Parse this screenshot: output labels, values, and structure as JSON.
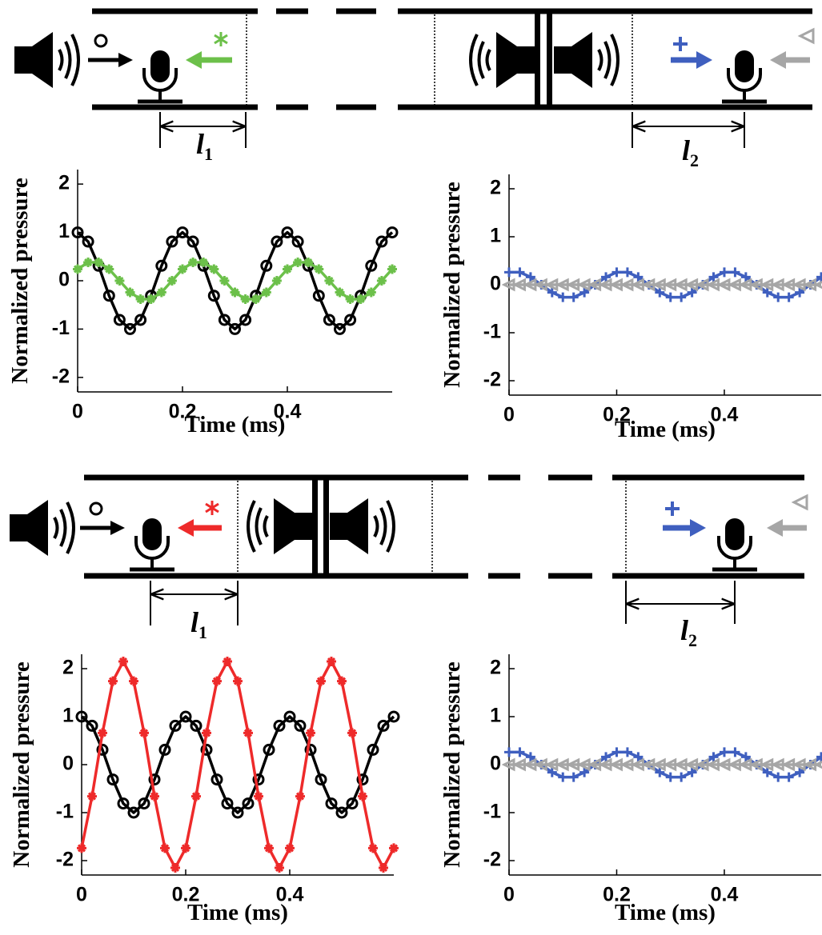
{
  "diagrams": [
    {
      "l1": {
        "symbol": "l",
        "subscript": "1"
      },
      "l2": {
        "symbol": "l",
        "subscript": "2"
      }
    },
    {
      "l1": {
        "symbol": "l",
        "subscript": "1"
      },
      "l2": {
        "symbol": "l",
        "subscript": "2"
      }
    }
  ],
  "chart_data": [
    {
      "type": "line",
      "xlabel": "Time (ms)",
      "ylabel": "Normalized pressure",
      "x": [
        0,
        0.02,
        0.04,
        0.06,
        0.08,
        0.1,
        0.12,
        0.14,
        0.16,
        0.18,
        0.2,
        0.22,
        0.24,
        0.26,
        0.28,
        0.3,
        0.32,
        0.34,
        0.36,
        0.38,
        0.4,
        0.42,
        0.44,
        0.46,
        0.48,
        0.5,
        0.52,
        0.54,
        0.56,
        0.58,
        0.6
      ],
      "xlim": [
        0,
        0.6
      ],
      "xticks": [
        0,
        0.2,
        0.4
      ],
      "ylim": [
        -2.3,
        2.3
      ],
      "yticks": [
        -2,
        -1,
        0,
        1,
        2
      ],
      "series": [
        {
          "color": "#000000",
          "marker": "o",
          "values": [
            1,
            0.81,
            0.31,
            -0.31,
            -0.81,
            -1,
            -0.81,
            -0.31,
            0.31,
            0.81,
            1,
            0.81,
            0.31,
            -0.31,
            -0.81,
            -1,
            -0.81,
            -0.31,
            0.31,
            0.81,
            1,
            0.81,
            0.31,
            -0.31,
            -0.81,
            -1,
            -0.81,
            -0.31,
            0.31,
            0.81,
            1
          ]
        },
        {
          "color": "#6cc04a",
          "marker": "*",
          "values": [
            0.24,
            0.38,
            0.38,
            0.24,
            0,
            -0.24,
            -0.38,
            -0.38,
            -0.24,
            0,
            0.24,
            0.38,
            0.38,
            0.24,
            0,
            -0.24,
            -0.38,
            -0.38,
            -0.24,
            0,
            0.24,
            0.38,
            0.38,
            0.24,
            0,
            -0.24,
            -0.38,
            -0.38,
            -0.24,
            0,
            0.24
          ]
        }
      ]
    },
    {
      "type": "line",
      "xlabel": "Time (ms)",
      "ylabel": "Normalized pressure",
      "x": [
        0,
        0.02,
        0.04,
        0.06,
        0.08,
        0.1,
        0.12,
        0.14,
        0.16,
        0.18,
        0.2,
        0.22,
        0.24,
        0.26,
        0.28,
        0.3,
        0.32,
        0.34,
        0.36,
        0.38,
        0.4,
        0.42,
        0.44,
        0.46,
        0.48,
        0.5,
        0.52,
        0.54,
        0.56,
        0.58
      ],
      "xlim": [
        0,
        0.58
      ],
      "xticks": [
        0,
        0.2,
        0.4
      ],
      "ylim": [
        -2.3,
        2.3
      ],
      "yticks": [
        -2,
        -1,
        0,
        1,
        2
      ],
      "series": [
        {
          "color": "#3f5fbf",
          "marker": "+",
          "values": [
            0.26,
            0.26,
            0.16,
            0,
            -0.16,
            -0.26,
            -0.26,
            -0.16,
            0,
            0.16,
            0.26,
            0.26,
            0.16,
            0,
            -0.16,
            -0.26,
            -0.26,
            -0.16,
            0,
            0.16,
            0.26,
            0.26,
            0.16,
            0,
            -0.16,
            -0.26,
            -0.26,
            -0.16,
            0,
            0.16
          ]
        },
        {
          "color": "#a6a6a6",
          "marker": "<",
          "values": [
            0,
            0,
            0,
            0,
            0,
            0,
            0,
            0,
            0,
            0,
            0,
            0,
            0,
            0,
            0,
            0,
            0,
            0,
            0,
            0,
            0,
            0,
            0,
            0,
            0,
            0,
            0,
            0,
            0,
            0
          ]
        }
      ]
    },
    {
      "type": "line",
      "xlabel": "Time (ms)",
      "ylabel": "Normalized pressure",
      "x": [
        0,
        0.02,
        0.04,
        0.06,
        0.08,
        0.1,
        0.12,
        0.14,
        0.16,
        0.18,
        0.2,
        0.22,
        0.24,
        0.26,
        0.28,
        0.3,
        0.32,
        0.34,
        0.36,
        0.38,
        0.4,
        0.42,
        0.44,
        0.46,
        0.48,
        0.5,
        0.52,
        0.54,
        0.56,
        0.58,
        0.6
      ],
      "xlim": [
        0,
        0.6
      ],
      "xticks": [
        0,
        0.2,
        0.4
      ],
      "ylim": [
        -2.3,
        2.3
      ],
      "yticks": [
        -2,
        -1,
        0,
        1,
        2
      ],
      "series": [
        {
          "color": "#000000",
          "marker": "o",
          "values": [
            1,
            0.81,
            0.31,
            -0.31,
            -0.81,
            -1,
            -0.81,
            -0.31,
            0.31,
            0.81,
            1,
            0.81,
            0.31,
            -0.31,
            -0.81,
            -1,
            -0.81,
            -0.31,
            0.31,
            0.81,
            1,
            0.81,
            0.31,
            -0.31,
            -0.81,
            -1,
            -0.81,
            -0.31,
            0.31,
            0.81,
            1
          ]
        },
        {
          "color": "#ee2a2a",
          "marker": "*",
          "values": [
            -1.74,
            -0.66,
            0.66,
            1.74,
            2.15,
            1.74,
            0.66,
            -0.66,
            -1.74,
            -2.15,
            -1.74,
            -0.66,
            0.66,
            1.74,
            2.15,
            1.74,
            0.66,
            -0.66,
            -1.74,
            -2.15,
            -1.74,
            -0.66,
            0.66,
            1.74,
            2.15,
            1.74,
            0.66,
            -0.66,
            -1.74,
            -2.15,
            -1.74
          ]
        }
      ]
    },
    {
      "type": "line",
      "xlabel": "Time (ms)",
      "ylabel": "Normalized pressure",
      "x": [
        0,
        0.02,
        0.04,
        0.06,
        0.08,
        0.1,
        0.12,
        0.14,
        0.16,
        0.18,
        0.2,
        0.22,
        0.24,
        0.26,
        0.28,
        0.3,
        0.32,
        0.34,
        0.36,
        0.38,
        0.4,
        0.42,
        0.44,
        0.46,
        0.48,
        0.5,
        0.52,
        0.54,
        0.56,
        0.58
      ],
      "xlim": [
        0,
        0.58
      ],
      "xticks": [
        0,
        0.2,
        0.4
      ],
      "ylim": [
        -2.3,
        2.3
      ],
      "yticks": [
        -2,
        -1,
        0,
        1,
        2
      ],
      "series": [
        {
          "color": "#3f5fbf",
          "marker": "+",
          "values": [
            0.26,
            0.26,
            0.16,
            0,
            -0.16,
            -0.26,
            -0.26,
            -0.16,
            0,
            0.16,
            0.26,
            0.26,
            0.16,
            0,
            -0.16,
            -0.26,
            -0.26,
            -0.16,
            0,
            0.16,
            0.26,
            0.26,
            0.16,
            0,
            -0.16,
            -0.26,
            -0.26,
            -0.16,
            0,
            0.16
          ]
        },
        {
          "color": "#a6a6a6",
          "marker": "<",
          "values": [
            0,
            0,
            0,
            0,
            0,
            0,
            0,
            0,
            0,
            0,
            0,
            0,
            0,
            0,
            0,
            0,
            0,
            0,
            0,
            0,
            0,
            0,
            0,
            0,
            0,
            0,
            0,
            0,
            0,
            0
          ]
        }
      ]
    }
  ]
}
